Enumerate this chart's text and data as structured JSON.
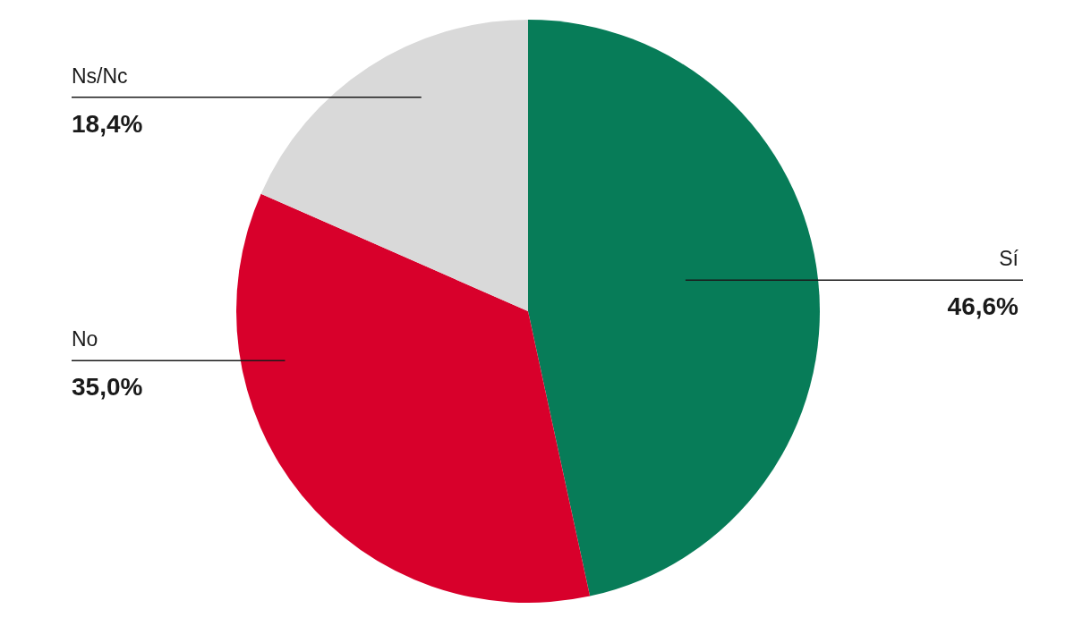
{
  "chart_data": {
    "type": "pie",
    "categories": [
      "Sí",
      "No",
      "Ns/Nc"
    ],
    "values": [
      46.6,
      35.0,
      18.4
    ],
    "value_labels": [
      "46,6%",
      "35,0%",
      "18,4%"
    ],
    "colors": [
      "#077c58",
      "#d8002b",
      "#d9d9d9"
    ],
    "legend": false
  }
}
